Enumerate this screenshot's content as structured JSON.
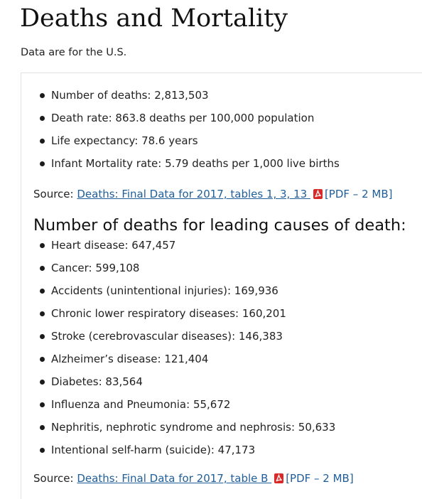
{
  "page": {
    "title": "Deaths and Mortality",
    "intro": "Data are for the U.S."
  },
  "stats": [
    {
      "label": "Number of deaths: 2,813,503"
    },
    {
      "label": "Death rate: 863.8 deaths per 100,000 population"
    },
    {
      "label": "Life expectancy: 78.6 years"
    },
    {
      "label": "Infant Mortality rate: 5.79 deaths per 1,000 live births"
    }
  ],
  "source_1": {
    "prefix": "Source: ",
    "link_text": "Deaths: Final Data for 2017, tables 1, 3, 13 ",
    "icon": "pdf-icon",
    "size_text": "[PDF – 2 MB]"
  },
  "causes": {
    "heading": "Number of deaths for leading causes of death:",
    "items": [
      {
        "label": "Heart disease: 647,457"
      },
      {
        "label": "Cancer: 599,108"
      },
      {
        "label": "Accidents (unintentional injuries): 169,936"
      },
      {
        "label": "Chronic lower respiratory diseases: 160,201"
      },
      {
        "label": "Stroke (cerebrovascular diseases): 146,383"
      },
      {
        "label": "Alzheimer’s disease: 121,404"
      },
      {
        "label": "Diabetes: 83,564"
      },
      {
        "label": "Influenza and Pneumonia: 55,672"
      },
      {
        "label": "Nephritis, nephrotic syndrome and nephrosis: 50,633"
      },
      {
        "label": "Intentional self-harm (suicide): 47,173"
      }
    ]
  },
  "source_2": {
    "prefix": "Source: ",
    "link_text": "Deaths: Final Data for 2017, table B ",
    "icon": "pdf-icon",
    "size_text": "[PDF – 2 MB]"
  },
  "colors": {
    "link": "#1f5e99",
    "pdf_icon": "#d92a2a",
    "card_border": "#e2e2e2"
  }
}
